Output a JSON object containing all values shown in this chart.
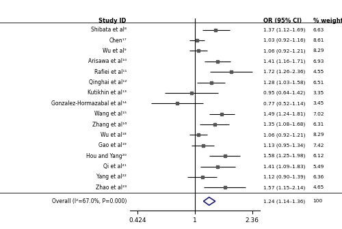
{
  "studies": [
    {
      "label": "Shibata et al⁸",
      "or": 1.37,
      "ci_lo": 1.12,
      "ci_hi": 1.69,
      "weight": 6.63
    },
    {
      "label": "Chen¹⁷",
      "or": 1.03,
      "ci_lo": 0.92,
      "ci_hi": 1.16,
      "weight": 8.61
    },
    {
      "label": "Wu et al⁹",
      "or": 1.06,
      "ci_lo": 0.92,
      "ci_hi": 1.21,
      "weight": 8.29
    },
    {
      "label": "Arisawa et al¹⁰",
      "or": 1.41,
      "ci_lo": 1.16,
      "ci_hi": 1.71,
      "weight": 6.93
    },
    {
      "label": "Rafiei et al¹¹",
      "or": 1.72,
      "ci_lo": 1.26,
      "ci_hi": 2.36,
      "weight": 4.55
    },
    {
      "label": "Qinghai et al¹²",
      "or": 1.28,
      "ci_lo": 1.03,
      "ci_hi": 1.58,
      "weight": 6.51
    },
    {
      "label": "Kutikhin et al¹³",
      "or": 0.95,
      "ci_lo": 0.64,
      "ci_hi": 1.42,
      "weight": 3.35
    },
    {
      "label": "Gonzalez-Hormazabal et al¹⁴",
      "or": 0.77,
      "ci_lo": 0.52,
      "ci_hi": 1.14,
      "weight": 3.45
    },
    {
      "label": "Wang et al¹⁵",
      "or": 1.49,
      "ci_lo": 1.24,
      "ci_hi": 1.81,
      "weight": 7.02
    },
    {
      "label": "Zhang et al¹⁶",
      "or": 1.35,
      "ci_lo": 1.08,
      "ci_hi": 1.68,
      "weight": 6.31
    },
    {
      "label": "Wu et al¹⁸",
      "or": 1.06,
      "ci_lo": 0.92,
      "ci_hi": 1.21,
      "weight": 8.29
    },
    {
      "label": "Gao et al¹⁹",
      "or": 1.13,
      "ci_lo": 0.95,
      "ci_hi": 1.34,
      "weight": 7.42
    },
    {
      "label": "Hou and Yang²⁰",
      "or": 1.58,
      "ci_lo": 1.25,
      "ci_hi": 1.98,
      "weight": 6.12
    },
    {
      "label": "Qi et al²¹",
      "or": 1.41,
      "ci_lo": 1.09,
      "ci_hi": 1.83,
      "weight": 5.49
    },
    {
      "label": "Yang et al²²",
      "or": 1.12,
      "ci_lo": 0.9,
      "ci_hi": 1.39,
      "weight": 6.36
    },
    {
      "label": "Zhao et al²³",
      "or": 1.57,
      "ci_lo": 1.15,
      "ci_hi": 2.14,
      "weight": 4.65
    }
  ],
  "overall": {
    "label": "Overall (I²=67.0%, P=0.000)",
    "or": 1.24,
    "ci_lo": 1.14,
    "ci_hi": 1.36
  },
  "x_ticks": [
    0.424,
    1.0,
    2.36
  ],
  "x_tick_labels": [
    "0.424",
    "1",
    "2.36"
  ],
  "header_study": "Study ID",
  "header_or": "OR (95% CI)",
  "header_weight": "% weight",
  "spine_color": "#000000",
  "marker_color": "#555555",
  "diamond_edge": "#1a1a6e",
  "dashed_color": "#cc6666"
}
